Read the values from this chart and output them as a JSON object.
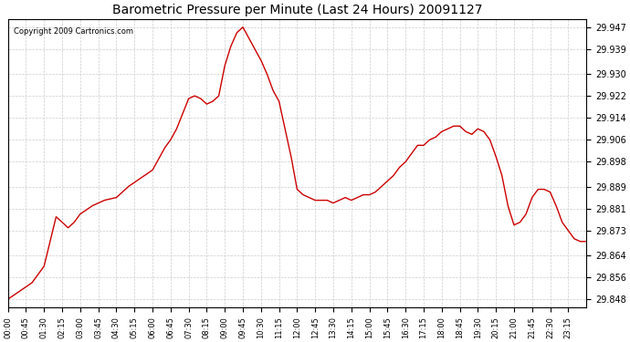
{
  "title": "Barometric Pressure per Minute (Last 24 Hours) 20091127",
  "copyright": "Copyright 2009 Cartronics.com",
  "line_color": "#cc0000",
  "bg_color": "#ffffff",
  "grid_color": "#cccccc",
  "yticks": [
    29.848,
    29.856,
    29.864,
    29.873,
    29.881,
    29.889,
    29.898,
    29.906,
    29.914,
    29.922,
    29.93,
    29.939,
    29.947
  ],
  "ymin": 29.845,
  "ymax": 29.95,
  "xtick_labels": [
    "00:00",
    "00:45",
    "01:30",
    "02:15",
    "03:00",
    "03:45",
    "04:30",
    "05:15",
    "06:00",
    "06:45",
    "07:30",
    "08:15",
    "09:00",
    "09:45",
    "10:30",
    "11:15",
    "12:00",
    "12:45",
    "13:30",
    "14:15",
    "15:00",
    "15:45",
    "16:30",
    "17:15",
    "18:00",
    "18:45",
    "19:30",
    "20:15",
    "21:00",
    "21:45",
    "22:30",
    "23:15"
  ],
  "control_points_x": [
    0,
    30,
    60,
    90,
    120,
    135,
    150,
    165,
    180,
    210,
    240,
    270,
    300,
    330,
    360,
    390,
    405,
    420,
    450,
    465,
    480,
    495,
    510,
    525,
    540,
    555,
    570,
    585,
    600,
    615,
    630,
    645,
    660,
    675,
    690,
    705,
    720,
    735,
    750,
    765,
    780,
    795,
    810,
    825,
    840,
    855,
    870,
    885,
    900,
    915,
    930,
    945,
    960,
    975,
    990,
    1005,
    1020,
    1035,
    1050,
    1065,
    1080,
    1095,
    1110,
    1125,
    1140,
    1155,
    1170,
    1185,
    1200,
    1215,
    1230,
    1245,
    1260,
    1275,
    1290,
    1305,
    1320,
    1335,
    1350,
    1365,
    1380,
    1395,
    1410,
    1425,
    1440
  ],
  "control_points_y": [
    29.848,
    29.851,
    29.854,
    29.86,
    29.878,
    29.876,
    29.874,
    29.876,
    29.879,
    29.882,
    29.884,
    29.885,
    29.889,
    29.892,
    29.895,
    29.903,
    29.906,
    29.91,
    29.921,
    29.922,
    29.921,
    29.919,
    29.92,
    29.922,
    29.933,
    29.94,
    29.945,
    29.947,
    29.943,
    29.939,
    29.935,
    29.93,
    29.924,
    29.92,
    29.91,
    29.9,
    29.888,
    29.886,
    29.885,
    29.884,
    29.884,
    29.884,
    29.883,
    29.884,
    29.885,
    29.884,
    29.885,
    29.886,
    29.886,
    29.887,
    29.889,
    29.891,
    29.893,
    29.896,
    29.898,
    29.901,
    29.904,
    29.904,
    29.906,
    29.907,
    29.909,
    29.91,
    29.911,
    29.911,
    29.909,
    29.908,
    29.91,
    29.909,
    29.906,
    29.9,
    29.893,
    29.882,
    29.875,
    29.876,
    29.879,
    29.885,
    29.888,
    29.888,
    29.887,
    29.882,
    29.876,
    29.873,
    29.87,
    29.869,
    29.869
  ]
}
